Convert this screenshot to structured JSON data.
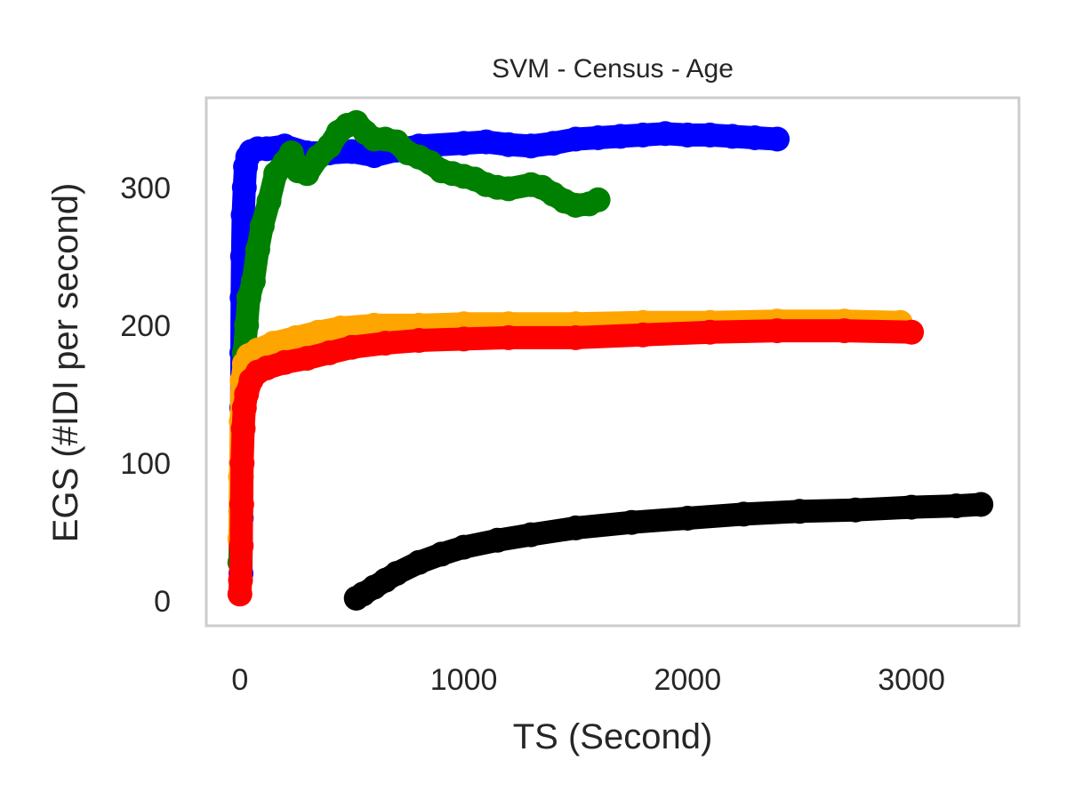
{
  "chart_data": {
    "type": "scatter",
    "title": "SVM - Census - Age",
    "xlabel": "TS (Second)",
    "ylabel": "EGS (#IDI  per second)",
    "xlim": [
      -150,
      3480
    ],
    "ylim": [
      -18,
      365
    ],
    "x_ticks": [
      0,
      1000,
      2000,
      3000
    ],
    "y_ticks": [
      0,
      100,
      200,
      300
    ],
    "grid": false,
    "legend": "none",
    "frame_color": "#cccccc",
    "series": [
      {
        "color": "#0000ff",
        "points": [
          [
            5,
            20
          ],
          [
            6,
            60
          ],
          [
            7,
            100
          ],
          [
            8,
            140
          ],
          [
            9,
            180
          ],
          [
            10,
            220
          ],
          [
            12,
            250
          ],
          [
            15,
            280
          ],
          [
            20,
            300
          ],
          [
            25,
            315
          ],
          [
            35,
            322
          ],
          [
            50,
            326
          ],
          [
            80,
            328
          ],
          [
            120,
            328
          ],
          [
            200,
            330
          ],
          [
            300,
            325
          ],
          [
            400,
            325
          ],
          [
            500,
            326
          ],
          [
            600,
            323
          ],
          [
            700,
            327
          ],
          [
            800,
            330
          ],
          [
            1000,
            332
          ],
          [
            1100,
            333
          ],
          [
            1200,
            331
          ],
          [
            1300,
            330
          ],
          [
            1400,
            332
          ],
          [
            1500,
            335
          ],
          [
            1600,
            336
          ],
          [
            1700,
            337
          ],
          [
            1800,
            338
          ],
          [
            1900,
            339
          ],
          [
            2000,
            338
          ],
          [
            2100,
            338
          ],
          [
            2200,
            337
          ],
          [
            2300,
            336
          ],
          [
            2400,
            335
          ]
        ]
      },
      {
        "color": "#008000",
        "points": [
          [
            0,
            28
          ],
          [
            2,
            45
          ],
          [
            4,
            65
          ],
          [
            6,
            90
          ],
          [
            10,
            130
          ],
          [
            15,
            155
          ],
          [
            20,
            180
          ],
          [
            30,
            200
          ],
          [
            40,
            220
          ],
          [
            60,
            232
          ],
          [
            80,
            255
          ],
          [
            100,
            272
          ],
          [
            130,
            290
          ],
          [
            160,
            310
          ],
          [
            200,
            318
          ],
          [
            230,
            325
          ],
          [
            260,
            312
          ],
          [
            300,
            310
          ],
          [
            350,
            322
          ],
          [
            400,
            330
          ],
          [
            440,
            340
          ],
          [
            480,
            345
          ],
          [
            520,
            347
          ],
          [
            560,
            340
          ],
          [
            600,
            335
          ],
          [
            650,
            335
          ],
          [
            700,
            333
          ],
          [
            750,
            325
          ],
          [
            800,
            322
          ],
          [
            850,
            318
          ],
          [
            900,
            312
          ],
          [
            950,
            310
          ],
          [
            1000,
            308
          ],
          [
            1050,
            306
          ],
          [
            1100,
            302
          ],
          [
            1150,
            300
          ],
          [
            1200,
            299
          ],
          [
            1300,
            302
          ],
          [
            1350,
            300
          ],
          [
            1400,
            295
          ],
          [
            1450,
            290
          ],
          [
            1500,
            287
          ],
          [
            1560,
            288
          ],
          [
            1600,
            291
          ]
        ]
      },
      {
        "color": "#ffa500",
        "points": [
          [
            0,
            45
          ],
          [
            3,
            90
          ],
          [
            6,
            130
          ],
          [
            10,
            160
          ],
          [
            20,
            172
          ],
          [
            40,
            178
          ],
          [
            80,
            182
          ],
          [
            150,
            187
          ],
          [
            250,
            191
          ],
          [
            350,
            195
          ],
          [
            450,
            198
          ],
          [
            600,
            200
          ],
          [
            800,
            200
          ],
          [
            1000,
            201
          ],
          [
            1200,
            201
          ],
          [
            1500,
            201
          ],
          [
            1800,
            202
          ],
          [
            2100,
            202
          ],
          [
            2400,
            203
          ],
          [
            2700,
            203
          ],
          [
            2950,
            202
          ]
        ]
      },
      {
        "color": "#ff0000",
        "points": [
          [
            0,
            5
          ],
          [
            3,
            15
          ],
          [
            6,
            40
          ],
          [
            8,
            70
          ],
          [
            10,
            100
          ],
          [
            15,
            125
          ],
          [
            20,
            140
          ],
          [
            30,
            150
          ],
          [
            50,
            160
          ],
          [
            80,
            166
          ],
          [
            120,
            169
          ],
          [
            200,
            173
          ],
          [
            300,
            176
          ],
          [
            400,
            180
          ],
          [
            500,
            184
          ],
          [
            650,
            187
          ],
          [
            800,
            189
          ],
          [
            1000,
            190
          ],
          [
            1200,
            191
          ],
          [
            1500,
            191
          ],
          [
            1800,
            193
          ],
          [
            2100,
            195
          ],
          [
            2400,
            196
          ],
          [
            2700,
            196
          ],
          [
            3000,
            195
          ]
        ]
      },
      {
        "color": "#000000",
        "points": [
          [
            520,
            2
          ],
          [
            550,
            5
          ],
          [
            600,
            10
          ],
          [
            650,
            15
          ],
          [
            700,
            20
          ],
          [
            800,
            28
          ],
          [
            900,
            34
          ],
          [
            1000,
            39
          ],
          [
            1150,
            44
          ],
          [
            1300,
            48
          ],
          [
            1500,
            53
          ],
          [
            1750,
            57
          ],
          [
            2000,
            60
          ],
          [
            2250,
            63
          ],
          [
            2500,
            65
          ],
          [
            2750,
            66
          ],
          [
            3000,
            68
          ],
          [
            3200,
            69
          ],
          [
            3310,
            70
          ]
        ]
      }
    ]
  }
}
